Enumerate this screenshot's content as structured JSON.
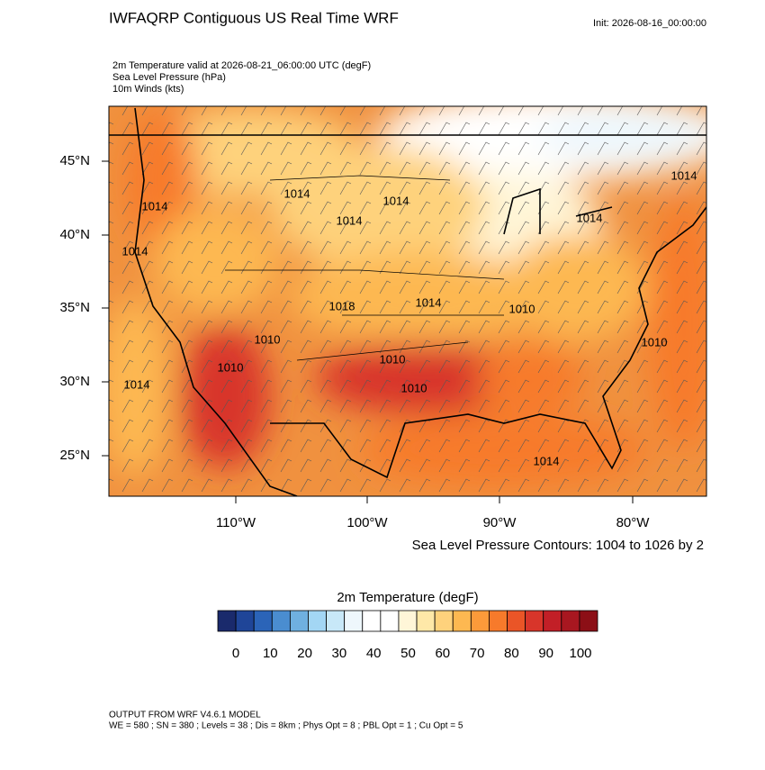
{
  "header": {
    "title": "IWFAQRP Contiguous US Real Time WRF",
    "init": "Init: 2026-08-16_00:00:00",
    "fields": [
      "2m Temperature valid at 2026-08-21_06:00:00 UTC   (degF)",
      "Sea Level Pressure   (hPa)",
      "10m Winds   (kts)"
    ]
  },
  "map": {
    "lat_labels": [
      "45°N",
      "40°N",
      "35°N",
      "30°N",
      "25°N"
    ],
    "lon_labels": [
      "110°W",
      "100°W",
      "90°W",
      "80°W"
    ],
    "contour_labels": [
      "1014",
      "1014",
      "1014",
      "1014",
      "1014",
      "1014",
      "1018",
      "1014",
      "1010",
      "1010",
      "1014",
      "1010",
      "1010",
      "1010",
      "1010",
      "1014",
      "1014"
    ],
    "caption": "Sea Level Pressure Contours: 1004 to 1026 by 2"
  },
  "colorbar": {
    "title": "2m Temperature  (degF)",
    "colors": [
      "#1a2a6c",
      "#1f4598",
      "#2b64b8",
      "#4a8dd0",
      "#6fb0e0",
      "#a3d6f4",
      "#c8e8f8",
      "#eef7fc",
      "#ffffff",
      "#ffffff",
      "#fff6d8",
      "#fee8a8",
      "#fed27c",
      "#fdb851",
      "#fc9a3a",
      "#f77a2b",
      "#ea5527",
      "#d8352a",
      "#c21f27",
      "#a81720",
      "#8c0f16"
    ],
    "labels": [
      "0",
      "10",
      "20",
      "30",
      "40",
      "50",
      "60",
      "70",
      "80",
      "90",
      "100"
    ]
  },
  "footer": {
    "line1": "OUTPUT FROM WRF V4.6.1 MODEL",
    "line2": "WE = 580 ; SN = 380 ; Levels = 38 ; Dis = 8km ; Phys Opt = 8 ; PBL Opt = 1 ; Cu Opt = 5"
  }
}
